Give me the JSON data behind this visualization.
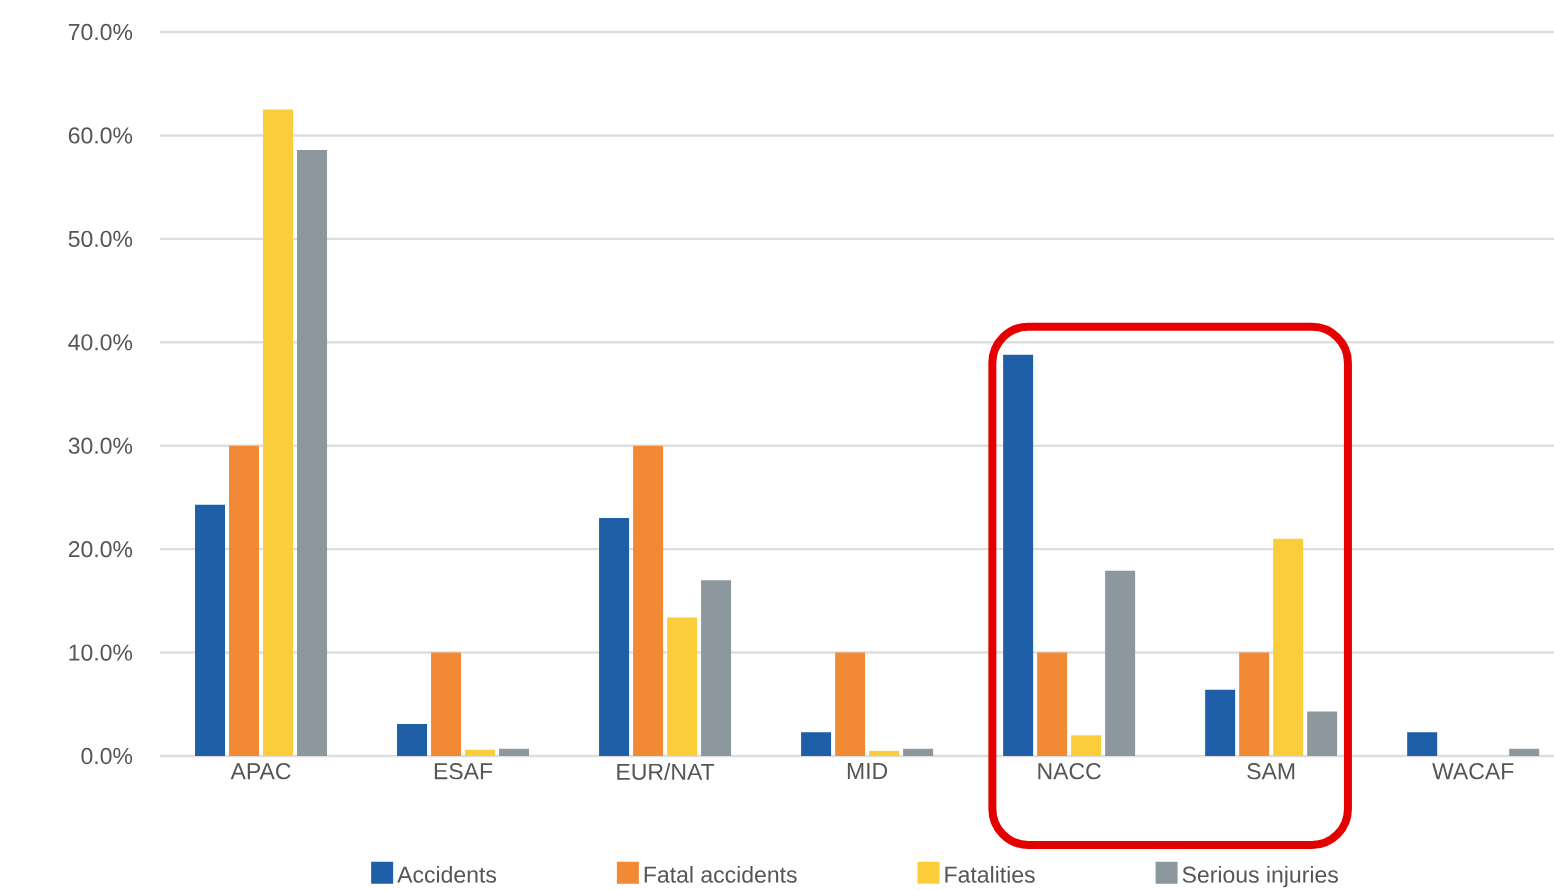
{
  "chart_data": {
    "type": "bar",
    "categories": [
      "APAC",
      "ESAF",
      "EUR/NAT",
      "MID",
      "NACC",
      "SAM",
      "WACAF"
    ],
    "series": [
      {
        "name": "Accidents",
        "color": "#1f5fa8",
        "values": [
          24.3,
          3.1,
          23.0,
          2.3,
          38.8,
          6.4,
          2.3
        ]
      },
      {
        "name": "Fatal accidents",
        "color": "#f28a35",
        "values": [
          30,
          10,
          30,
          10,
          10,
          10,
          0
        ]
      },
      {
        "name": "Fatalities",
        "color": "#fccd3a",
        "values": [
          62.5,
          0.6,
          13.4,
          0.5,
          2.0,
          21.0,
          0
        ]
      },
      {
        "name": "Serious injuries",
        "color": "#8c979e",
        "values": [
          58.6,
          0.7,
          17.0,
          0.7,
          17.9,
          4.3,
          0.7
        ]
      }
    ],
    "ylim": [
      0,
      70
    ],
    "yticks": [
      {
        "value": 0,
        "label": "0.0%"
      },
      {
        "value": 10,
        "label": "10.0%"
      },
      {
        "value": 20,
        "label": "20.0%"
      },
      {
        "value": 30,
        "label": "30.0%"
      },
      {
        "value": 40,
        "label": "40.0%"
      },
      {
        "value": 50,
        "label": "50.0%"
      },
      {
        "value": 60,
        "label": "60.0%"
      },
      {
        "value": 70,
        "label": "70.0%"
      }
    ],
    "grid": "y",
    "legend": "bottom"
  }
}
